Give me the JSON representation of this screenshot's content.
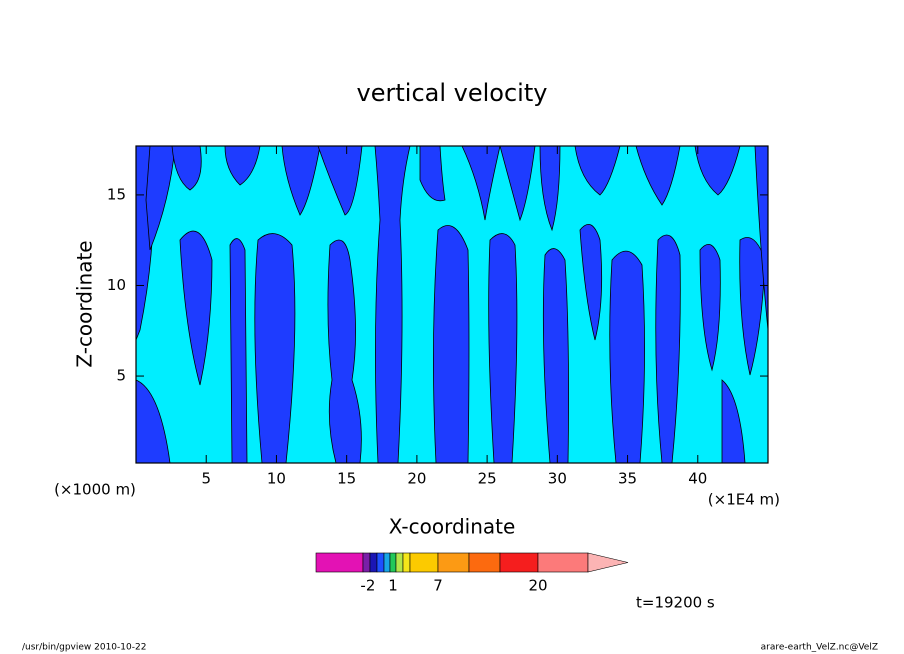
{
  "chart_data": {
    "type": "contour",
    "title": "vertical velocity",
    "xlabel": "X-coordinate",
    "ylabel": "Z-coordinate",
    "xunit": "(×1E4 m)",
    "yunit": "(×1000 m)",
    "xlim": [
      0,
      45
    ],
    "xticks": [
      5,
      10,
      15,
      20,
      25,
      30,
      35,
      40
    ],
    "ylim": [
      0.2,
      17.7
    ],
    "yticks": [
      5,
      10,
      15
    ],
    "field_colors": [
      "#00eeff",
      "#1e3cff"
    ],
    "colorbar": {
      "colors": [
        "#e312b4",
        "#7a1fa8",
        "#1b16b4",
        "#1e50ff",
        "#17a6e6",
        "#22c85a",
        "#b4e64a",
        "#f5e61a",
        "#fcca00",
        "#fc9a14",
        "#fc6a0f",
        "#f51e1e",
        "#fc7a7a",
        "#fcb4b4"
      ],
      "labels": [
        "-2",
        "1",
        "7",
        "20"
      ]
    },
    "annotation": "t=19200 s",
    "footer_left": "/usr/bin/gpview  2010-10-22",
    "footer_right": "arare-earth_VelZ.nc@VelZ"
  }
}
